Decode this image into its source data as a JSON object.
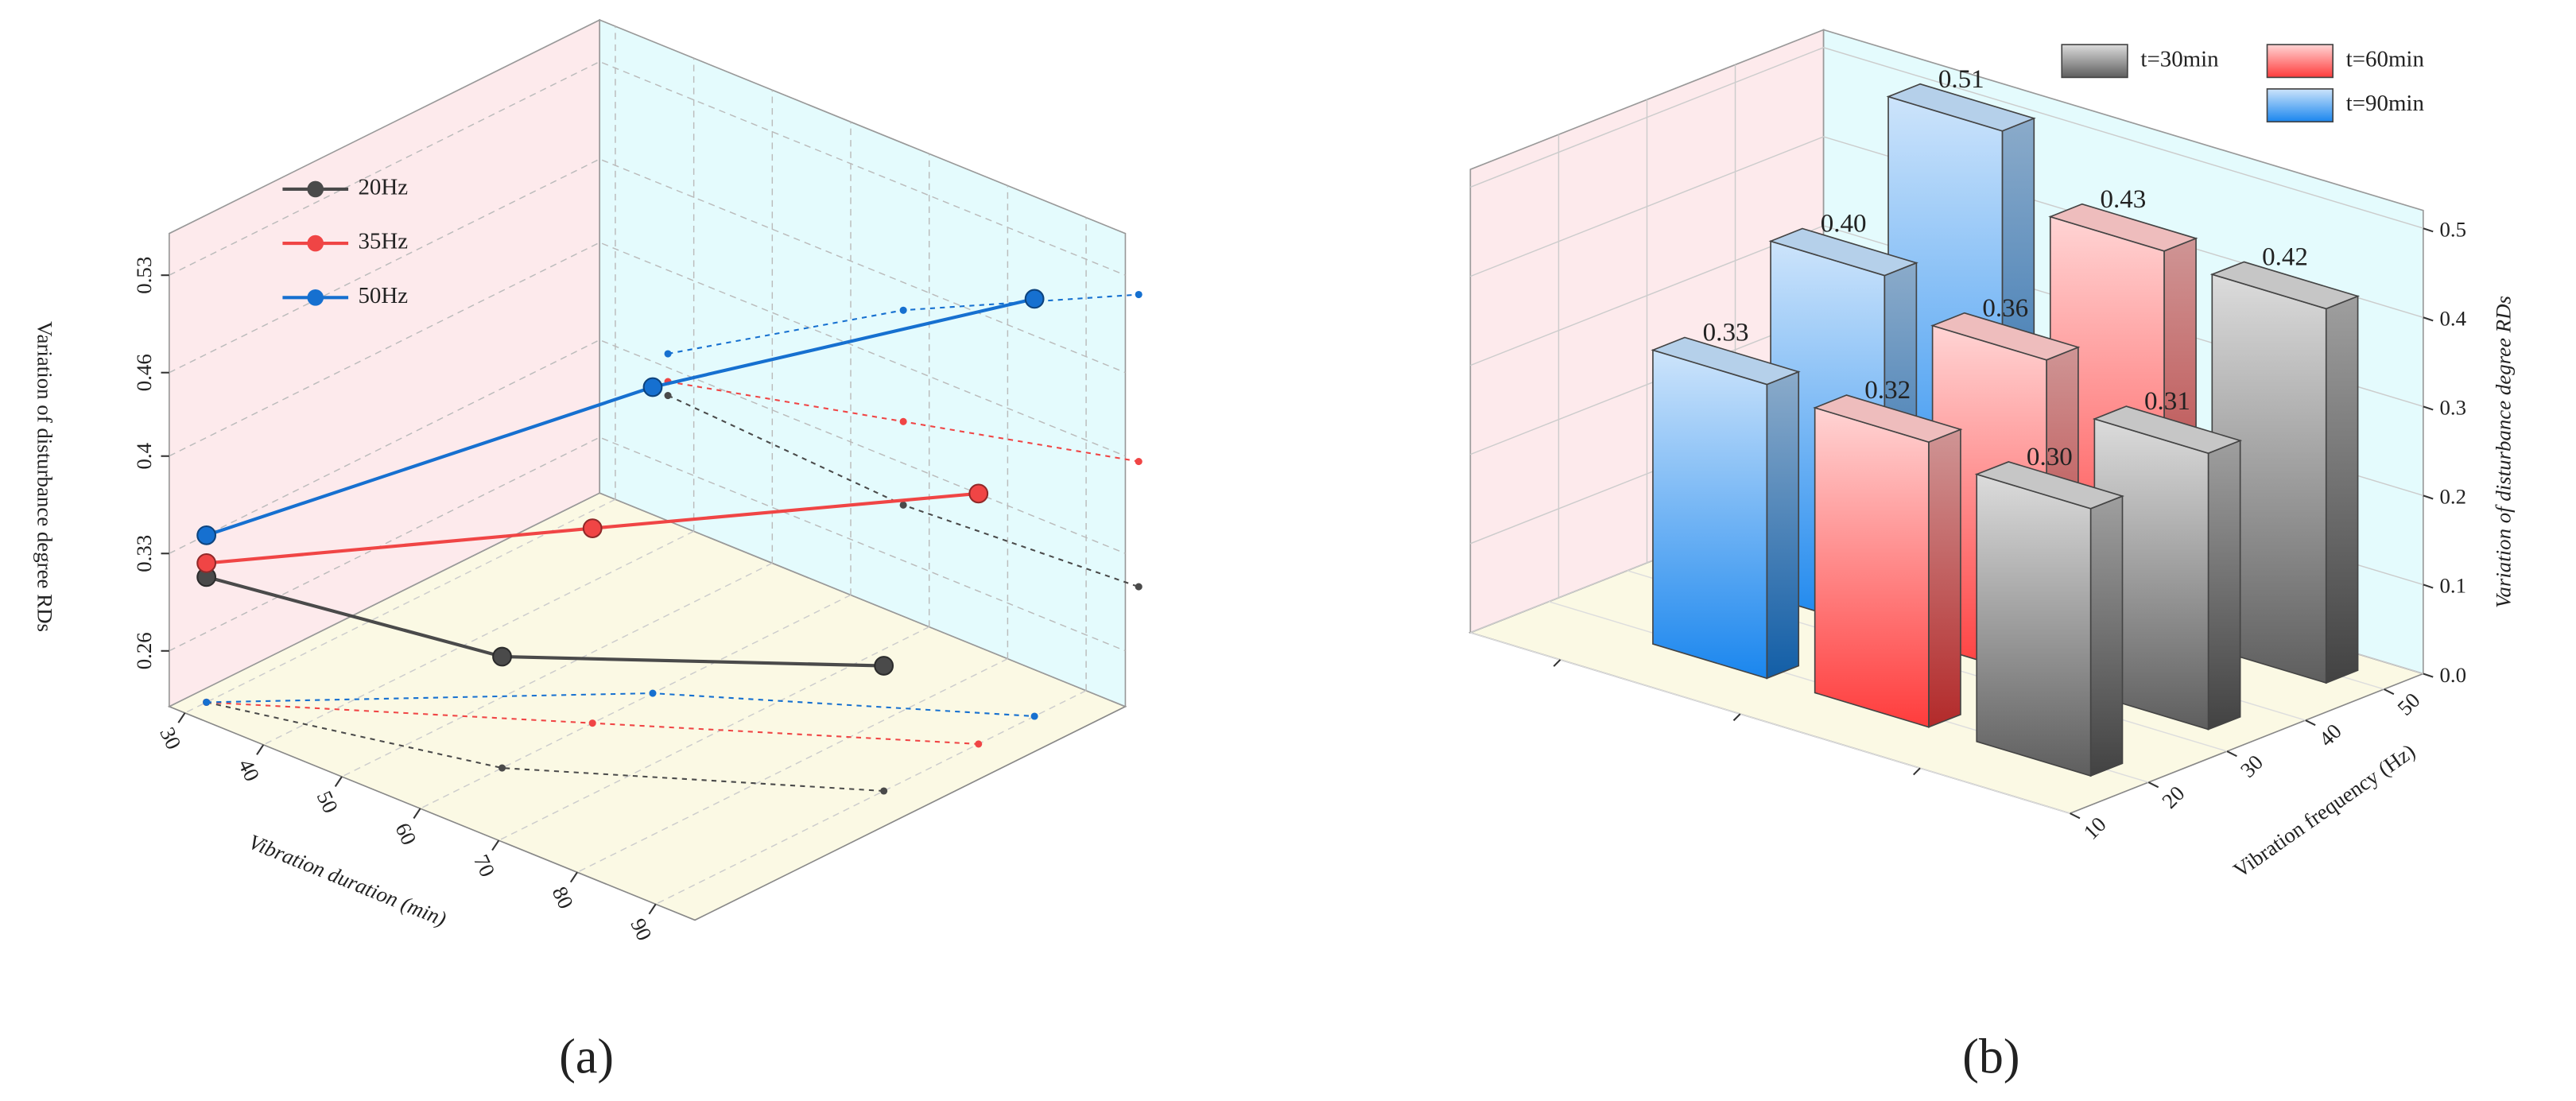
{
  "chart_data": [
    {
      "type": "line",
      "label": "(a)",
      "x_label": "Vibration duration (min)",
      "y_label": "Variation of disturbance degree RDs",
      "x": [
        30,
        60,
        90
      ],
      "series": [
        {
          "name": "20Hz",
          "color": "#4a4a4a",
          "values": [
            0.31,
            0.3,
            0.31
          ]
        },
        {
          "name": "35Hz",
          "color": "#f04545",
          "values": [
            0.32,
            0.36,
            0.4
          ]
        },
        {
          "name": "50Hz",
          "color": "#1670d0",
          "values": [
            0.34,
            0.44,
            0.52
          ]
        }
      ],
      "xlim": [
        28,
        95
      ],
      "xticks": [
        30,
        40,
        50,
        60,
        70,
        80,
        90
      ],
      "ylim": [
        0.22,
        0.56
      ],
      "yticks": [
        0.26,
        0.33,
        0.4,
        0.46,
        0.53
      ],
      "grid": true,
      "legend": "top-left"
    },
    {
      "type": "bar",
      "label": "(b)",
      "x_label": "Vibration frequency (Hz)",
      "y_label": "Variation of disturbance degree RDs",
      "x": [
        20,
        35,
        50
      ],
      "series": [
        {
          "name": "t=30min",
          "color": "#5e5e5e",
          "values": [
            0.3,
            0.31,
            0.42
          ],
          "value_labels": [
            "0.30",
            "0.31",
            "0.42"
          ]
        },
        {
          "name": "t=60min",
          "color": "#ff3c3c",
          "values": [
            0.32,
            0.36,
            0.43
          ],
          "value_labels": [
            "0.32",
            "0.36",
            "0.43"
          ]
        },
        {
          "name": "t=90min",
          "color": "#1a86ee",
          "values": [
            0.33,
            0.4,
            0.51
          ],
          "value_labels": [
            "0.33",
            "0.40",
            "0.51"
          ]
        }
      ],
      "xlim": [
        10,
        55
      ],
      "xticks": [
        10,
        20,
        30,
        40,
        50
      ],
      "ylim": [
        0,
        0.52
      ],
      "yticks": [
        {
          "value": 0,
          "label": "0.0"
        },
        0.1,
        0.2,
        0.3,
        0.4,
        0.5
      ],
      "grid": true,
      "legend": "top-right"
    }
  ]
}
